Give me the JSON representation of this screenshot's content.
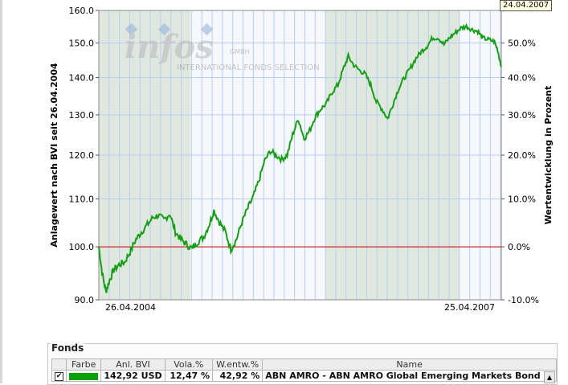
{
  "chart_data": {
    "type": "line",
    "watermark": {
      "brand": "infos",
      "suffix": "GMBH",
      "tagline": "INTERNATIONAL FONDS SELECTION"
    },
    "y_left": {
      "label": "Anlagewert nach BVI seit 26.04.2004",
      "ticks": [
        "160.0",
        "150.0",
        "140.0",
        "130.0",
        "120.0",
        "110.0",
        "100.0",
        "90.0"
      ],
      "range": [
        90,
        160
      ]
    },
    "y_right": {
      "label": "Wertentwicklung in Prozent",
      "ticks": [
        "50.0%",
        "40.0%",
        "30.0%",
        "20.0%",
        "10.0%",
        "0.0%",
        "-10.0%"
      ]
    },
    "x_ticks": [
      "26.04.2004",
      "25.04.2007"
    ],
    "x_range": [
      "2004-04-26",
      "2007-04-25"
    ],
    "baseline": 100,
    "shaded_years": [
      [
        "2004-04-26",
        "2004-12-31"
      ],
      [
        "2006-01-01",
        "2006-12-31"
      ]
    ],
    "colors": {
      "series": "#12a012",
      "baseline": "#d40000",
      "grid": "#b8cef0",
      "shade": "#dfe7df"
    },
    "series": [
      {
        "x": [
          "2004-04-26",
          "2004-05-05",
          "2004-05-15",
          "2004-05-25",
          "2004-06-05",
          "2004-06-20",
          "2004-07-05",
          "2004-07-20",
          "2004-08-05",
          "2004-08-20",
          "2004-09-05",
          "2004-09-20",
          "2004-10-05",
          "2004-10-20",
          "2004-11-05",
          "2004-11-20",
          "2004-12-05",
          "2004-12-20",
          "2005-01-05",
          "2005-01-20",
          "2005-02-05",
          "2005-02-20",
          "2005-03-05",
          "2005-03-20",
          "2005-04-05",
          "2005-04-20",
          "2005-05-05",
          "2005-05-20",
          "2005-06-05",
          "2005-06-20",
          "2005-07-05",
          "2005-07-20",
          "2005-08-05",
          "2005-08-20",
          "2005-09-05",
          "2005-09-20",
          "2005-10-05",
          "2005-10-20",
          "2005-11-05",
          "2005-11-20",
          "2005-12-05",
          "2005-12-20",
          "2006-01-05",
          "2006-01-20",
          "2006-02-05",
          "2006-02-20",
          "2006-03-05",
          "2006-03-20",
          "2006-04-05",
          "2006-04-20",
          "2006-05-05",
          "2006-05-20",
          "2006-06-05",
          "2006-06-20",
          "2006-07-05",
          "2006-07-20",
          "2006-08-05",
          "2006-08-20",
          "2006-09-05",
          "2006-09-20",
          "2006-10-05",
          "2006-10-20",
          "2006-11-05",
          "2006-11-20",
          "2006-12-05",
          "2006-12-20",
          "2007-01-05",
          "2007-01-20",
          "2007-02-05",
          "2007-02-20",
          "2007-03-05",
          "2007-03-20",
          "2007-04-05",
          "2007-04-15",
          "2007-04-25"
        ],
        "values": [
          100.0,
          95.0,
          91.5,
          93.5,
          95.5,
          96.5,
          97.0,
          99.0,
          101.5,
          103.0,
          104.5,
          106.0,
          106.5,
          105.5,
          106.8,
          103.0,
          101.5,
          100.5,
          99.6,
          101.0,
          102.0,
          104.5,
          107.5,
          105.0,
          103.0,
          99.5,
          101.5,
          105.0,
          108.0,
          110.5,
          114.0,
          118.5,
          121.0,
          120.0,
          119.0,
          120.0,
          125.0,
          129.0,
          124.0,
          126.0,
          129.5,
          131.5,
          133.0,
          136.0,
          138.0,
          142.5,
          146.0,
          143.5,
          142.0,
          141.0,
          138.0,
          133.5,
          131.5,
          129.0,
          133.0,
          137.0,
          140.0,
          142.5,
          145.5,
          147.5,
          149.0,
          151.5,
          151.5,
          149.5,
          151.5,
          153.0,
          154.5,
          155.0,
          154.0,
          153.5,
          151.5,
          151.0,
          150.5,
          148.0,
          143.0
        ]
      }
    ]
  },
  "tooltip": {
    "date": "24.04.2007"
  },
  "fonds": {
    "title": "Fonds",
    "columns": [
      "Farbe",
      "Anl. BVI",
      "Vola.%",
      "W.entw.%",
      "Name"
    ],
    "row": {
      "checked": true,
      "color": "#0aa00a",
      "anl": "142,92  USD",
      "vola": "12,47 %",
      "wentw": "42,92 %",
      "name": "ABN AMRO - ABN AMRO Global Emerging Markets Bond ..."
    }
  }
}
